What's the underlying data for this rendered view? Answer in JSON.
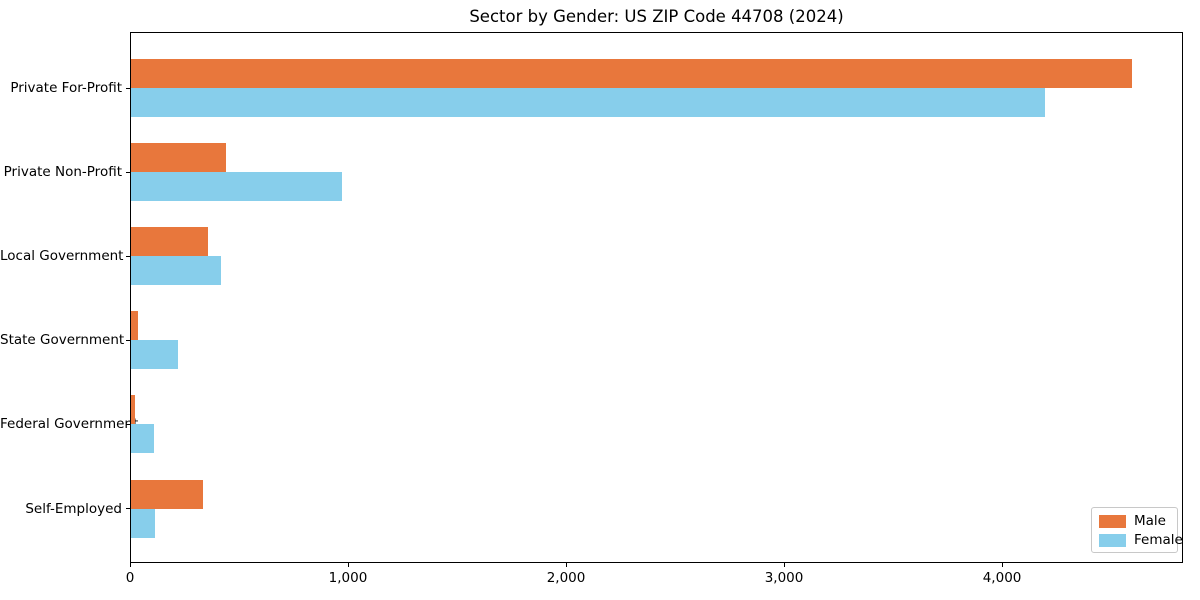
{
  "title": "Sector by Gender: US ZIP Code 44708 (2024)",
  "chart_data": {
    "type": "bar",
    "orientation": "horizontal",
    "title": "Sector by Gender: US ZIP Code 44708 (2024)",
    "xlabel": "",
    "ylabel": "",
    "categories": [
      "Private For-Profit",
      "Private Non-Profit",
      "Local Government",
      "State Government",
      "Federal Government",
      "Self-Employed"
    ],
    "series": [
      {
        "name": "Male",
        "color": "#E8773C",
        "values": [
          4600,
          435,
          355,
          30,
          18,
          330
        ]
      },
      {
        "name": "Female",
        "color": "#87CEEB",
        "values": [
          4200,
          970,
          415,
          215,
          105,
          110
        ]
      }
    ],
    "xlim": [
      0,
      4830
    ],
    "xticks": [
      0,
      1000,
      2000,
      3000,
      4000
    ],
    "xtick_labels": [
      "0",
      "1,000",
      "2,000",
      "3,000",
      "4,000"
    ],
    "grid": false,
    "legend": {
      "position": "lower right",
      "entries": [
        "Male",
        "Female"
      ]
    }
  }
}
